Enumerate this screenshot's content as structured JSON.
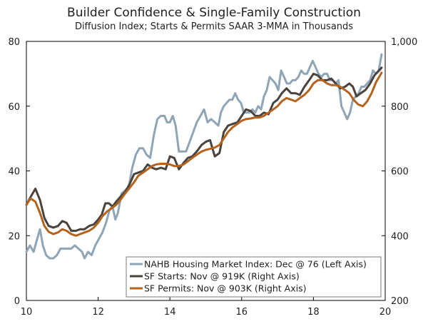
{
  "chart_data": {
    "type": "line",
    "title": "Builder Confidence & Single-Family Construction",
    "subtitle": "Diffusion Index; Starts & Permits SAAR 3-MMA in Thousands",
    "x_ticks": [
      "10",
      "12",
      "14",
      "16",
      "18",
      "20"
    ],
    "xlim": [
      2010,
      2020
    ],
    "left_axis": {
      "ylim": [
        0,
        80
      ],
      "ticks": [
        "0",
        "20",
        "40",
        "60",
        "80"
      ]
    },
    "right_axis": {
      "ylim": [
        200,
        1000
      ],
      "ticks": [
        "200",
        "400",
        "600",
        "800",
        "1,000"
      ]
    },
    "series": [
      {
        "name": "NAHB Housing Market Index",
        "legend": "NAHB Housing Market Index: Dec @ 76 (Left Axis)",
        "axis": "left",
        "color": "#8fa5b5",
        "points": [
          [
            2010.0,
            15
          ],
          [
            2010.1,
            17
          ],
          [
            2010.2,
            15
          ],
          [
            2010.3,
            19
          ],
          [
            2010.38,
            22
          ],
          [
            2010.46,
            17
          ],
          [
            2010.55,
            14
          ],
          [
            2010.65,
            13
          ],
          [
            2010.75,
            13
          ],
          [
            2010.85,
            14
          ],
          [
            2010.95,
            16
          ],
          [
            2011.05,
            16
          ],
          [
            2011.15,
            16
          ],
          [
            2011.25,
            16
          ],
          [
            2011.35,
            17
          ],
          [
            2011.45,
            16
          ],
          [
            2011.55,
            15
          ],
          [
            2011.62,
            13
          ],
          [
            2011.72,
            15
          ],
          [
            2011.82,
            14
          ],
          [
            2011.92,
            17
          ],
          [
            2012.02,
            19
          ],
          [
            2012.12,
            21
          ],
          [
            2012.22,
            24
          ],
          [
            2012.32,
            28
          ],
          [
            2012.4,
            29
          ],
          [
            2012.48,
            25
          ],
          [
            2012.55,
            27
          ],
          [
            2012.65,
            33
          ],
          [
            2012.75,
            34
          ],
          [
            2012.85,
            35
          ],
          [
            2012.95,
            41
          ],
          [
            2013.05,
            45
          ],
          [
            2013.15,
            47
          ],
          [
            2013.25,
            47
          ],
          [
            2013.35,
            45
          ],
          [
            2013.45,
            44
          ],
          [
            2013.55,
            51
          ],
          [
            2013.65,
            56
          ],
          [
            2013.75,
            57
          ],
          [
            2013.85,
            57
          ],
          [
            2013.92,
            55
          ],
          [
            2014.0,
            55
          ],
          [
            2014.08,
            57
          ],
          [
            2014.16,
            54
          ],
          [
            2014.25,
            46
          ],
          [
            2014.35,
            46
          ],
          [
            2014.45,
            46
          ],
          [
            2014.55,
            49
          ],
          [
            2014.65,
            52
          ],
          [
            2014.75,
            55
          ],
          [
            2014.85,
            57
          ],
          [
            2014.95,
            59
          ],
          [
            2015.05,
            55
          ],
          [
            2015.15,
            56
          ],
          [
            2015.25,
            55
          ],
          [
            2015.35,
            54
          ],
          [
            2015.42,
            58
          ],
          [
            2015.5,
            60
          ],
          [
            2015.58,
            61
          ],
          [
            2015.66,
            62
          ],
          [
            2015.74,
            62
          ],
          [
            2015.82,
            64
          ],
          [
            2015.9,
            62
          ],
          [
            2015.98,
            61
          ],
          [
            2016.06,
            58
          ],
          [
            2016.14,
            58
          ],
          [
            2016.22,
            58
          ],
          [
            2016.3,
            59
          ],
          [
            2016.38,
            58
          ],
          [
            2016.46,
            60
          ],
          [
            2016.54,
            59
          ],
          [
            2016.62,
            63
          ],
          [
            2016.7,
            65
          ],
          [
            2016.78,
            69
          ],
          [
            2016.86,
            68
          ],
          [
            2016.94,
            67
          ],
          [
            2017.02,
            65
          ],
          [
            2017.1,
            71
          ],
          [
            2017.18,
            69
          ],
          [
            2017.26,
            67
          ],
          [
            2017.34,
            67
          ],
          [
            2017.42,
            68
          ],
          [
            2017.5,
            68
          ],
          [
            2017.58,
            69
          ],
          [
            2017.66,
            71
          ],
          [
            2017.74,
            70
          ],
          [
            2017.82,
            70
          ],
          [
            2017.9,
            72
          ],
          [
            2017.98,
            74
          ],
          [
            2018.06,
            72
          ],
          [
            2018.14,
            70
          ],
          [
            2018.22,
            69
          ],
          [
            2018.3,
            70
          ],
          [
            2018.38,
            70
          ],
          [
            2018.46,
            68
          ],
          [
            2018.54,
            68
          ],
          [
            2018.62,
            67
          ],
          [
            2018.7,
            68
          ],
          [
            2018.78,
            60
          ],
          [
            2018.86,
            58
          ],
          [
            2018.94,
            56
          ],
          [
            2019.02,
            58
          ],
          [
            2019.1,
            62
          ],
          [
            2019.18,
            63
          ],
          [
            2019.26,
            64
          ],
          [
            2019.34,
            66
          ],
          [
            2019.42,
            66
          ],
          [
            2019.5,
            67
          ],
          [
            2019.58,
            68
          ],
          [
            2019.66,
            71
          ],
          [
            2019.74,
            70
          ],
          [
            2019.82,
            71
          ],
          [
            2019.9,
            76
          ]
        ]
      },
      {
        "name": "SF Starts",
        "legend": "SF Starts: Nov @ 919K (Right Axis)",
        "axis": "right",
        "color": "#4a423d",
        "points": [
          [
            2010.0,
            495
          ],
          [
            2010.12,
            520
          ],
          [
            2010.25,
            545
          ],
          [
            2010.38,
            510
          ],
          [
            2010.5,
            455
          ],
          [
            2010.62,
            430
          ],
          [
            2010.75,
            425
          ],
          [
            2010.88,
            430
          ],
          [
            2011.0,
            445
          ],
          [
            2011.12,
            440
          ],
          [
            2011.25,
            415
          ],
          [
            2011.38,
            415
          ],
          [
            2011.5,
            420
          ],
          [
            2011.62,
            420
          ],
          [
            2011.75,
            430
          ],
          [
            2011.88,
            435
          ],
          [
            2012.0,
            450
          ],
          [
            2012.1,
            465
          ],
          [
            2012.2,
            500
          ],
          [
            2012.3,
            500
          ],
          [
            2012.4,
            490
          ],
          [
            2012.5,
            505
          ],
          [
            2012.62,
            520
          ],
          [
            2012.75,
            535
          ],
          [
            2012.88,
            560
          ],
          [
            2013.0,
            590
          ],
          [
            2013.12,
            595
          ],
          [
            2013.25,
            600
          ],
          [
            2013.38,
            620
          ],
          [
            2013.5,
            610
          ],
          [
            2013.62,
            605
          ],
          [
            2013.75,
            610
          ],
          [
            2013.88,
            605
          ],
          [
            2014.0,
            645
          ],
          [
            2014.12,
            640
          ],
          [
            2014.25,
            605
          ],
          [
            2014.38,
            625
          ],
          [
            2014.5,
            640
          ],
          [
            2014.62,
            645
          ],
          [
            2014.75,
            660
          ],
          [
            2014.88,
            680
          ],
          [
            2015.0,
            690
          ],
          [
            2015.12,
            695
          ],
          [
            2015.25,
            645
          ],
          [
            2015.38,
            655
          ],
          [
            2015.5,
            720
          ],
          [
            2015.62,
            740
          ],
          [
            2015.75,
            745
          ],
          [
            2015.88,
            750
          ],
          [
            2016.0,
            770
          ],
          [
            2016.12,
            790
          ],
          [
            2016.25,
            785
          ],
          [
            2016.38,
            770
          ],
          [
            2016.5,
            770
          ],
          [
            2016.62,
            780
          ],
          [
            2016.75,
            775
          ],
          [
            2016.88,
            810
          ],
          [
            2017.0,
            820
          ],
          [
            2017.12,
            840
          ],
          [
            2017.25,
            855
          ],
          [
            2017.38,
            840
          ],
          [
            2017.5,
            840
          ],
          [
            2017.62,
            835
          ],
          [
            2017.75,
            860
          ],
          [
            2017.88,
            880
          ],
          [
            2018.0,
            900
          ],
          [
            2018.12,
            895
          ],
          [
            2018.25,
            880
          ],
          [
            2018.38,
            880
          ],
          [
            2018.5,
            885
          ],
          [
            2018.62,
            870
          ],
          [
            2018.75,
            855
          ],
          [
            2018.88,
            860
          ],
          [
            2019.0,
            870
          ],
          [
            2019.1,
            860
          ],
          [
            2019.2,
            830
          ],
          [
            2019.32,
            840
          ],
          [
            2019.45,
            850
          ],
          [
            2019.58,
            870
          ],
          [
            2019.7,
            895
          ],
          [
            2019.83,
            910
          ],
          [
            2019.9,
            919
          ]
        ]
      },
      {
        "name": "SF Permits",
        "legend": "SF Permits: Nov @ 903K (Right Axis)",
        "axis": "right",
        "color": "#b4631f",
        "points": [
          [
            2010.0,
            495
          ],
          [
            2010.12,
            515
          ],
          [
            2010.25,
            505
          ],
          [
            2010.38,
            470
          ],
          [
            2010.5,
            430
          ],
          [
            2010.62,
            412
          ],
          [
            2010.75,
            405
          ],
          [
            2010.88,
            410
          ],
          [
            2011.0,
            420
          ],
          [
            2011.12,
            415
          ],
          [
            2011.25,
            405
          ],
          [
            2011.38,
            400
          ],
          [
            2011.5,
            405
          ],
          [
            2011.62,
            410
          ],
          [
            2011.75,
            415
          ],
          [
            2011.88,
            425
          ],
          [
            2012.0,
            440
          ],
          [
            2012.12,
            460
          ],
          [
            2012.25,
            475
          ],
          [
            2012.38,
            485
          ],
          [
            2012.5,
            495
          ],
          [
            2012.62,
            510
          ],
          [
            2012.75,
            530
          ],
          [
            2012.88,
            548
          ],
          [
            2013.0,
            565
          ],
          [
            2013.12,
            585
          ],
          [
            2013.25,
            595
          ],
          [
            2013.38,
            605
          ],
          [
            2013.5,
            615
          ],
          [
            2013.62,
            620
          ],
          [
            2013.75,
            622
          ],
          [
            2013.88,
            622
          ],
          [
            2014.0,
            620
          ],
          [
            2014.12,
            615
          ],
          [
            2014.25,
            615
          ],
          [
            2014.38,
            620
          ],
          [
            2014.5,
            630
          ],
          [
            2014.62,
            640
          ],
          [
            2014.75,
            650
          ],
          [
            2014.88,
            660
          ],
          [
            2015.0,
            665
          ],
          [
            2015.12,
            668
          ],
          [
            2015.25,
            672
          ],
          [
            2015.38,
            680
          ],
          [
            2015.5,
            700
          ],
          [
            2015.62,
            720
          ],
          [
            2015.75,
            735
          ],
          [
            2015.88,
            745
          ],
          [
            2016.0,
            755
          ],
          [
            2016.12,
            760
          ],
          [
            2016.25,
            762
          ],
          [
            2016.38,
            765
          ],
          [
            2016.5,
            765
          ],
          [
            2016.62,
            770
          ],
          [
            2016.75,
            780
          ],
          [
            2016.88,
            790
          ],
          [
            2017.0,
            800
          ],
          [
            2017.12,
            815
          ],
          [
            2017.25,
            825
          ],
          [
            2017.38,
            820
          ],
          [
            2017.5,
            815
          ],
          [
            2017.62,
            825
          ],
          [
            2017.75,
            835
          ],
          [
            2017.88,
            850
          ],
          [
            2018.0,
            870
          ],
          [
            2018.12,
            880
          ],
          [
            2018.25,
            880
          ],
          [
            2018.38,
            870
          ],
          [
            2018.5,
            865
          ],
          [
            2018.62,
            865
          ],
          [
            2018.75,
            860
          ],
          [
            2018.88,
            850
          ],
          [
            2019.0,
            840
          ],
          [
            2019.12,
            820
          ],
          [
            2019.25,
            805
          ],
          [
            2019.38,
            800
          ],
          [
            2019.5,
            815
          ],
          [
            2019.62,
            840
          ],
          [
            2019.75,
            875
          ],
          [
            2019.9,
            903
          ]
        ]
      }
    ]
  }
}
